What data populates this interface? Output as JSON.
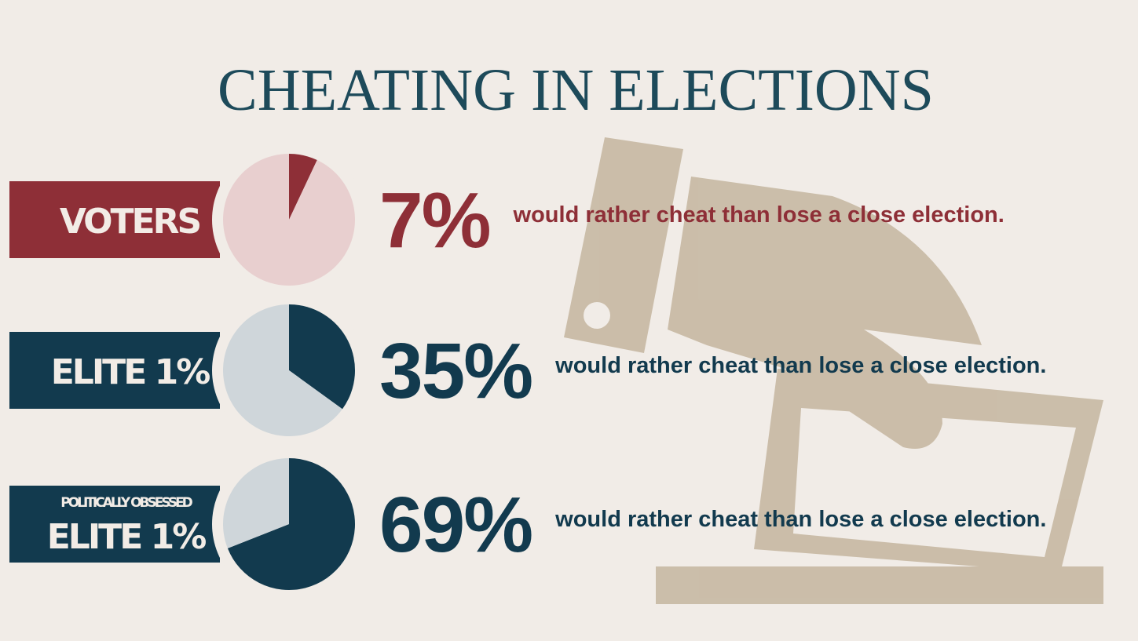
{
  "title": "CHEATING IN ELECTIONS",
  "chart_data": [
    {
      "type": "pie",
      "label": "VOTERS",
      "values": [
        7,
        93
      ],
      "value_labels": [
        "7%",
        null
      ],
      "caption": "would rather cheat than lose a close election.",
      "colors": [
        "#8e2f37",
        "#e8cfcf"
      ]
    },
    {
      "type": "pie",
      "label": "ELITE 1%",
      "values": [
        35,
        65
      ],
      "value_labels": [
        "35%",
        null
      ],
      "caption": "would rather cheat than lose a close election.",
      "colors": [
        "#123a4e",
        "#cfd6da"
      ]
    },
    {
      "type": "pie",
      "sublabel": "POLITICALLY OBSESSED",
      "label": "ELITE 1%",
      "values": [
        69,
        31
      ],
      "value_labels": [
        "69%",
        null
      ],
      "caption": "would rather cheat than lose a close election.",
      "colors": [
        "#123a4e",
        "#cfd6da"
      ]
    }
  ]
}
